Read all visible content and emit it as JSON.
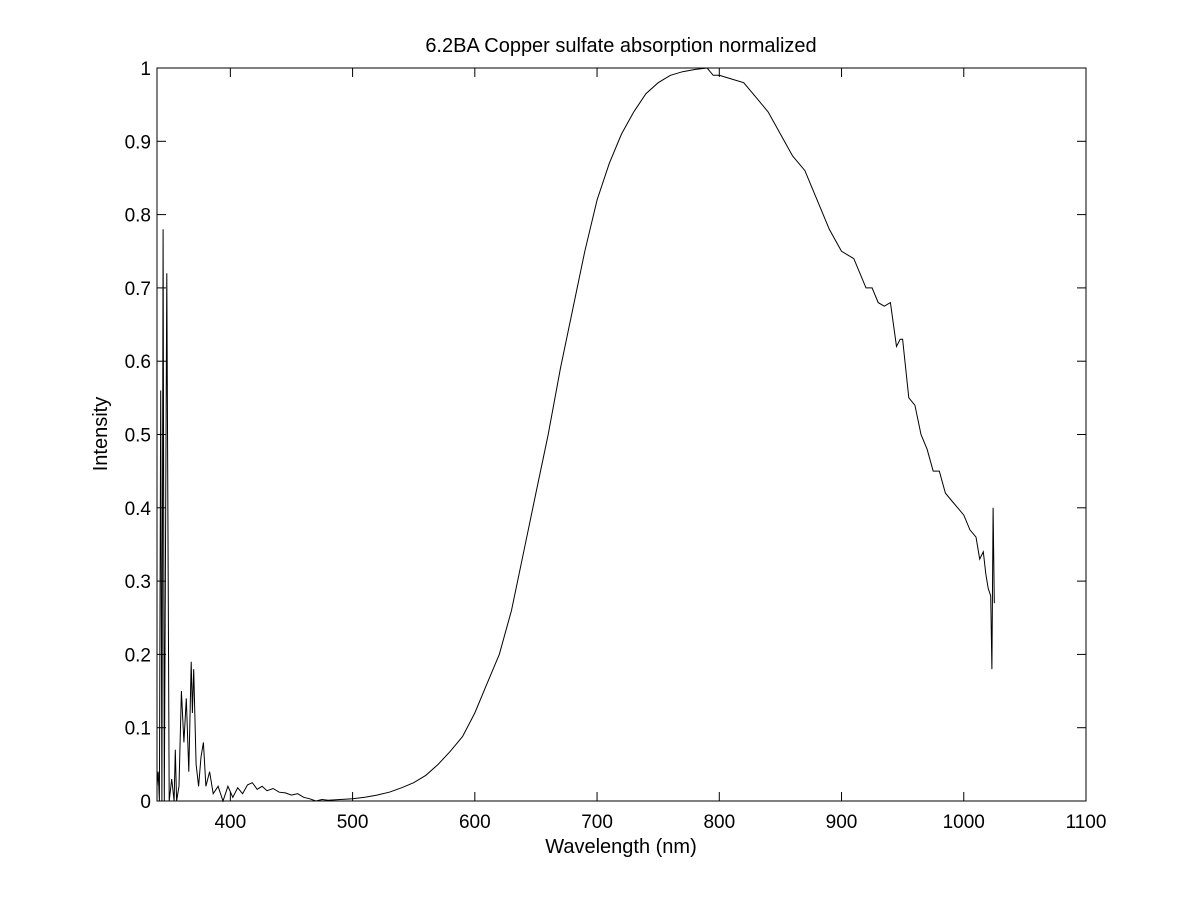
{
  "chart_data": {
    "type": "line",
    "title": "6.2BA Copper sulfate absorption normalized",
    "xlabel": "Wavelength (nm)",
    "ylabel": "Intensity",
    "xlim": [
      340,
      1100
    ],
    "ylim": [
      0,
      1
    ],
    "x_ticks": [
      400,
      500,
      600,
      700,
      800,
      900,
      1000,
      1100
    ],
    "x_tick_labels": [
      "400",
      "500",
      "600",
      "700",
      "800",
      "900",
      "1000",
      "1100"
    ],
    "y_ticks": [
      0,
      0.1,
      0.2,
      0.3,
      0.4,
      0.5,
      0.6,
      0.7,
      0.8,
      0.9,
      1
    ],
    "y_tick_labels": [
      "0",
      "0.1",
      "0.2",
      "0.3",
      "0.4",
      "0.5",
      "0.6",
      "0.7",
      "0.8",
      "0.9",
      "1"
    ],
    "grid": false,
    "line_color": "#000000",
    "series": [
      {
        "x": [
          340,
          341,
          342,
          343,
          344,
          345,
          346,
          348,
          350,
          352,
          354,
          355,
          356,
          358,
          360,
          362,
          364,
          366,
          368,
          369,
          370,
          372,
          374,
          376,
          378,
          380,
          383,
          386,
          390,
          394,
          398,
          402,
          406,
          410,
          414,
          418,
          422,
          426,
          430,
          435,
          440,
          445,
          450,
          455,
          460,
          465,
          470,
          475,
          480,
          490,
          500,
          510,
          520,
          530,
          540,
          550,
          560,
          570,
          580,
          590,
          600,
          610,
          620,
          630,
          640,
          650,
          660,
          670,
          680,
          690,
          700,
          710,
          720,
          730,
          740,
          750,
          760,
          770,
          780,
          790,
          795,
          800,
          810,
          820,
          830,
          840,
          850,
          860,
          870,
          875,
          880,
          890,
          900,
          905,
          910,
          920,
          925,
          930,
          935,
          940,
          945,
          948,
          950,
          955,
          960,
          965,
          970,
          975,
          980,
          985,
          990,
          995,
          1000,
          1005,
          1010,
          1013,
          1016,
          1018,
          1020,
          1022,
          1023,
          1024,
          1025
        ],
        "y": [
          0.02,
          0.04,
          0.0,
          0.56,
          0.0,
          0.78,
          0.0,
          0.72,
          0.0,
          0.03,
          0.0,
          0.07,
          0.0,
          0.02,
          0.15,
          0.08,
          0.14,
          0.04,
          0.19,
          0.12,
          0.18,
          0.05,
          0.02,
          0.06,
          0.08,
          0.02,
          0.04,
          0.01,
          0.02,
          0.0,
          0.02,
          0.005,
          0.018,
          0.01,
          0.022,
          0.025,
          0.016,
          0.02,
          0.014,
          0.017,
          0.012,
          0.011,
          0.008,
          0.01,
          0.005,
          0.003,
          0.0,
          0.002,
          0.001,
          0.002,
          0.003,
          0.005,
          0.008,
          0.012,
          0.018,
          0.025,
          0.035,
          0.05,
          0.068,
          0.088,
          0.12,
          0.16,
          0.2,
          0.26,
          0.34,
          0.42,
          0.5,
          0.59,
          0.67,
          0.75,
          0.82,
          0.87,
          0.91,
          0.94,
          0.965,
          0.98,
          0.99,
          0.995,
          0.998,
          1.0,
          0.99,
          0.99,
          0.985,
          0.98,
          0.96,
          0.94,
          0.91,
          0.88,
          0.86,
          0.84,
          0.82,
          0.78,
          0.75,
          0.745,
          0.74,
          0.7,
          0.7,
          0.68,
          0.675,
          0.68,
          0.62,
          0.63,
          0.63,
          0.55,
          0.54,
          0.5,
          0.48,
          0.45,
          0.45,
          0.42,
          0.41,
          0.4,
          0.39,
          0.37,
          0.36,
          0.33,
          0.34,
          0.31,
          0.29,
          0.28,
          0.18,
          0.4,
          0.27
        ]
      }
    ]
  }
}
